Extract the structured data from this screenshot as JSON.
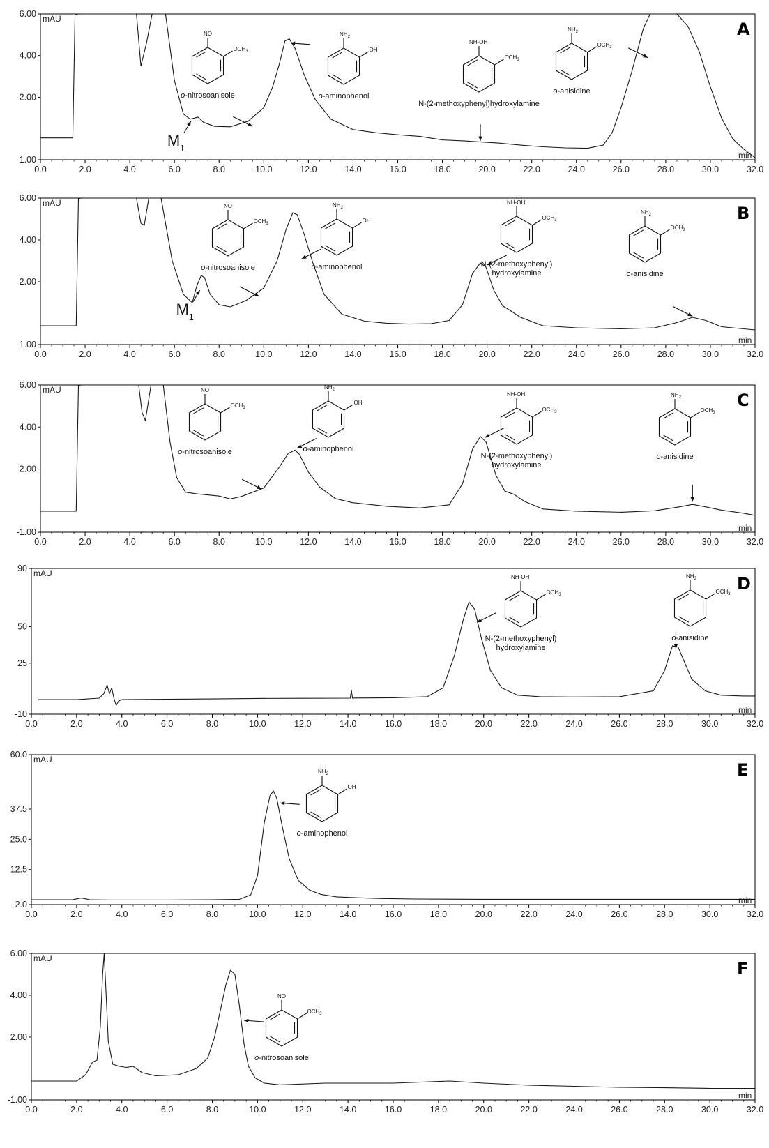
{
  "chart_data": [
    {
      "type": "line",
      "panel_label": "A",
      "y_unit": "mAU",
      "x_unit": "min",
      "xlim": [
        0,
        32
      ],
      "ylim": [
        -1,
        6
      ],
      "x_ticks": [
        "0.0",
        "2.0",
        "4.0",
        "6.0",
        "8.0",
        "10.0",
        "12.0",
        "14.0",
        "16.0",
        "18.0",
        "20.0",
        "22.0",
        "24.0",
        "26.0",
        "28.0",
        "30.0",
        "32.0"
      ],
      "y_ticks": [
        "6.00",
        "4.00",
        "2.00",
        "-1.00"
      ],
      "series": [
        {
          "x": [
            0,
            1.45,
            1.55,
            1.75,
            3.9,
            4.1,
            4.3,
            4.5,
            4.75,
            5.0,
            5.2,
            5.6,
            6.0,
            6.4,
            6.7,
            6.9,
            7.05,
            7.3,
            7.8,
            8.5,
            9.3,
            10.0,
            10.4,
            10.7,
            10.95,
            11.15,
            11.4,
            11.8,
            12.3,
            13.0,
            14.0,
            15.0,
            16.0,
            17.0,
            18.0,
            19.0,
            19.7,
            20.5,
            21.5,
            22.5,
            23.5,
            24.5,
            25.2,
            25.6,
            26.0,
            26.5,
            27.0,
            27.3,
            27.6,
            28.0,
            28.5,
            29.0,
            29.5,
            30.0,
            30.5,
            31.0,
            31.5,
            32.0
          ],
          "y": [
            0.05,
            0.05,
            5.98,
            6.0,
            6.0,
            6.0,
            6.0,
            3.5,
            4.6,
            6.0,
            6.0,
            6.0,
            2.8,
            1.2,
            0.95,
            1.0,
            1.05,
            0.8,
            0.6,
            0.58,
            0.85,
            1.5,
            2.5,
            3.6,
            4.7,
            4.8,
            4.35,
            3.1,
            1.9,
            0.95,
            0.45,
            0.3,
            0.2,
            0.12,
            -0.05,
            -0.1,
            -0.15,
            -0.2,
            -0.3,
            -0.38,
            -0.43,
            -0.45,
            -0.3,
            0.3,
            1.5,
            3.3,
            5.3,
            6.0,
            6.0,
            6.0,
            6.0,
            5.4,
            4.2,
            2.5,
            1.0,
            0.0,
            -0.5,
            -0.9
          ]
        }
      ],
      "annotations": [
        {
          "text": "o-nitrosoanisole",
          "structure": "NO / OCH3",
          "arrow_x": 9.5,
          "arrow_y": 0.6
        },
        {
          "text": "o-aminophenol",
          "structure": "NH2 / OH",
          "arrow_x": 11.2,
          "arrow_y": 4.6
        },
        {
          "text": "N-(2-methoxyphenyl)hydroxylamine",
          "structure": "NH-OH / OCH3",
          "arrow_x": 19.7,
          "arrow_y": -0.1
        },
        {
          "text": "o-anisidine",
          "structure": "NH2 / OCH3",
          "arrow_x": 27.2,
          "arrow_y": 3.9
        }
      ],
      "marker": {
        "text": "M",
        "subscript": "1",
        "arrow_x": 6.8,
        "arrow_y": 0.95
      }
    },
    {
      "type": "line",
      "panel_label": "B",
      "y_unit": "mAU",
      "x_unit": "min",
      "xlim": [
        0,
        32
      ],
      "ylim": [
        -1,
        6
      ],
      "x_ticks": [
        "0.0",
        "2.0",
        "4.0",
        "6.0",
        "8.0",
        "10.0",
        "12.0",
        "14.0",
        "16.0",
        "18.0",
        "20.0",
        "22.0",
        "24.0",
        "26.0",
        "28.0",
        "30.0",
        "32.0"
      ],
      "y_ticks": [
        "6.00",
        "4.00",
        "2.00",
        "-1.00"
      ],
      "series": [
        {
          "x": [
            0,
            1.6,
            1.7,
            1.85,
            4.3,
            4.5,
            4.65,
            4.85,
            5.05,
            5.4,
            5.9,
            6.4,
            6.8,
            7.0,
            7.2,
            7.35,
            7.6,
            8.0,
            8.5,
            9.2,
            10.0,
            10.6,
            11.0,
            11.3,
            11.5,
            11.8,
            12.2,
            12.7,
            13.5,
            14.5,
            15.5,
            16.5,
            17.5,
            18.3,
            18.9,
            19.35,
            19.7,
            19.95,
            20.3,
            20.7,
            21.0,
            21.5,
            22.5,
            24.0,
            26.0,
            27.5,
            28.5,
            29.2,
            29.8,
            30.5,
            31.5,
            32.0
          ],
          "y": [
            -0.1,
            -0.1,
            5.98,
            6.0,
            6.0,
            4.8,
            4.7,
            6.0,
            6.0,
            6.0,
            3.0,
            1.4,
            1.0,
            1.8,
            2.3,
            2.2,
            1.4,
            0.9,
            0.8,
            1.1,
            1.7,
            3.0,
            4.5,
            5.3,
            5.2,
            4.3,
            2.9,
            1.4,
            0.45,
            0.12,
            0.02,
            -0.02,
            0.0,
            0.15,
            0.9,
            2.4,
            2.9,
            2.7,
            1.6,
            0.85,
            0.65,
            0.3,
            -0.1,
            -0.2,
            -0.25,
            -0.2,
            0.05,
            0.3,
            0.15,
            -0.15,
            -0.25,
            -0.3
          ]
        }
      ],
      "annotations": [
        {
          "text": "o-nitrosoanisole",
          "structure": "NO / OCH3",
          "arrow_x": 9.8,
          "arrow_y": 1.3
        },
        {
          "text": "o-aminophenol",
          "structure": "NH2 / OH",
          "arrow_x": 11.7,
          "arrow_y": 3.1
        },
        {
          "text": "N-(2-methoxyphenyl)",
          "text2": "hydroxylamine",
          "structure": "NH-OH / OCH3",
          "arrow_x": 20.0,
          "arrow_y": 2.8
        },
        {
          "text": "o-anisidine",
          "structure": "NH2 / OCH3",
          "arrow_x": 29.2,
          "arrow_y": 0.35
        }
      ],
      "marker": {
        "text": "M",
        "subscript": "1",
        "arrow_x": 7.2,
        "arrow_y": 1.7
      }
    },
    {
      "type": "line",
      "panel_label": "C",
      "y_unit": "mAU",
      "x_unit": "min",
      "xlim": [
        0,
        32
      ],
      "ylim": [
        -1,
        6
      ],
      "x_ticks": [
        "0.0",
        "2.0",
        "4.0",
        "6.0",
        "8.0",
        "10.0",
        "12.0",
        "14.0",
        "16.0",
        "18.0",
        "20.0",
        "22.0",
        "24.0",
        "26.0",
        "28.0",
        "30.0",
        "32.0"
      ],
      "y_ticks": [
        "6.00",
        "4.00",
        "2.00",
        "-1.00"
      ],
      "series": [
        {
          "x": [
            0,
            1.6,
            1.7,
            1.85,
            4.4,
            4.55,
            4.7,
            4.95,
            5.2,
            5.5,
            5.8,
            6.1,
            6.5,
            7.0,
            8.0,
            8.5,
            9.0,
            10.0,
            10.7,
            11.1,
            11.4,
            11.6,
            12.0,
            12.5,
            13.2,
            14.0,
            15.5,
            17.0,
            18.3,
            18.9,
            19.35,
            19.7,
            19.95,
            20.4,
            20.8,
            21.2,
            21.7,
            22.5,
            24.0,
            26.0,
            27.5,
            28.6,
            29.2,
            29.8,
            30.5,
            31.5,
            32.0
          ],
          "y": [
            0.0,
            0.0,
            5.98,
            6.0,
            6.0,
            4.7,
            4.3,
            6.0,
            6.0,
            6.0,
            3.3,
            1.6,
            0.9,
            0.82,
            0.72,
            0.58,
            0.7,
            1.1,
            2.1,
            2.75,
            2.9,
            2.7,
            1.85,
            1.15,
            0.6,
            0.4,
            0.23,
            0.15,
            0.3,
            1.3,
            2.95,
            3.55,
            3.3,
            1.7,
            0.95,
            0.8,
            0.45,
            0.1,
            0.0,
            -0.05,
            0.02,
            0.2,
            0.32,
            0.2,
            0.05,
            -0.1,
            -0.2
          ]
        }
      ],
      "annotations": [
        {
          "text": "o-nitrosoanisole",
          "structure": "NO / OCH3",
          "arrow_x": 9.9,
          "arrow_y": 1.05
        },
        {
          "text": "o-aminophenol",
          "structure": "NH2 / OH",
          "arrow_x": 11.5,
          "arrow_y": 3.0
        },
        {
          "text": "N-(2-methoxyphenyl)",
          "text2": "hydroxylamine",
          "structure": "NH-OH / OCH3",
          "arrow_x": 19.9,
          "arrow_y": 3.5
        },
        {
          "text": "o-anisidine",
          "structure": "NH2 / OCH3",
          "arrow_x": 29.2,
          "arrow_y": 0.45
        }
      ]
    },
    {
      "type": "line",
      "panel_label": "D",
      "y_unit": "mAU",
      "x_unit": "min",
      "xlim": [
        0,
        32
      ],
      "ylim": [
        -10,
        90
      ],
      "x_ticks": [
        "0.0",
        "2.0",
        "4.0",
        "6.0",
        "8.0",
        "10.0",
        "12.0",
        "14.0",
        "16.0",
        "18.0",
        "20.0",
        "22.0",
        "24.0",
        "26.0",
        "28.0",
        "30.0",
        "32.0"
      ],
      "y_ticks": [
        "90",
        "50",
        "25",
        "-10"
      ],
      "series": [
        {
          "x": [
            0.3,
            2.0,
            3.0,
            3.2,
            3.35,
            3.45,
            3.55,
            3.65,
            3.75,
            3.85,
            4.0,
            6.0,
            8.0,
            10.0,
            12.0,
            14.1,
            14.15,
            14.2,
            14.3,
            16.0,
            17.5,
            18.2,
            18.7,
            19.1,
            19.35,
            19.6,
            19.9,
            20.3,
            20.8,
            21.5,
            22.5,
            24.0,
            26.0,
            27.5,
            28.0,
            28.35,
            28.6,
            28.9,
            29.2,
            29.8,
            30.5,
            31.5,
            32.0
          ],
          "y": [
            0.0,
            0.0,
            1.0,
            4.0,
            10.0,
            4.0,
            8.0,
            1.0,
            -4.0,
            -1.0,
            0.0,
            0.3,
            0.5,
            0.8,
            0.9,
            1.0,
            6.5,
            1.0,
            1.1,
            1.3,
            2.0,
            8.0,
            30.0,
            55.0,
            67.0,
            62.0,
            42.0,
            20.0,
            8.0,
            3.0,
            2.0,
            1.8,
            2.0,
            6.0,
            20.0,
            37.0,
            36.0,
            25.0,
            14.0,
            6.0,
            3.0,
            2.5,
            2.5
          ]
        }
      ],
      "annotations": [
        {
          "text": "N-(2-methoxyphenyl)",
          "text2": "hydroxylamine",
          "structure": "NH-OH / OCH3",
          "arrow_x": 19.7,
          "arrow_y": 53
        },
        {
          "text": "o-anisidine",
          "structure": "NH2 / OCH3",
          "arrow_x": 28.5,
          "arrow_y": 35
        }
      ]
    },
    {
      "type": "line",
      "panel_label": "E",
      "y_unit": "mAU",
      "x_unit": "min",
      "xlim": [
        0,
        32
      ],
      "ylim": [
        -2,
        60
      ],
      "x_ticks": [
        "0.0",
        "2.0",
        "4.0",
        "6.0",
        "8.0",
        "10.0",
        "12.0",
        "14.0",
        "16.0",
        "18.0",
        "20.0",
        "22.0",
        "24.0",
        "26.0",
        "28.0",
        "30.0",
        "32.0"
      ],
      "y_ticks": [
        "60.0",
        "37.5",
        "25.0",
        "12.5",
        "-2.0"
      ],
      "series": [
        {
          "x": [
            0,
            1.8,
            2.2,
            2.6,
            3.5,
            4.0,
            6.0,
            8.0,
            9.2,
            9.7,
            10.0,
            10.3,
            10.55,
            10.7,
            10.85,
            11.1,
            11.4,
            11.8,
            12.3,
            12.8,
            13.5,
            14.5,
            15.5,
            17.0,
            20.0,
            24.0,
            28.0,
            32.0
          ],
          "y": [
            0.0,
            0.0,
            0.7,
            0.0,
            -0.1,
            -0.1,
            -0.1,
            0.0,
            0.2,
            2.0,
            10.0,
            32.0,
            43.0,
            45.0,
            42.0,
            30.0,
            17.0,
            8.0,
            4.0,
            2.2,
            1.2,
            0.8,
            0.5,
            0.3,
            0.2,
            0.2,
            0.2,
            0.2
          ]
        }
      ],
      "annotations": [
        {
          "text": "o-aminophenol",
          "structure": "NH2 / OH",
          "arrow_x": 11.0,
          "arrow_y": 40
        }
      ]
    },
    {
      "type": "line",
      "panel_label": "F",
      "y_unit": "mAU",
      "x_unit": "min",
      "xlim": [
        0,
        32
      ],
      "ylim": [
        -1,
        6
      ],
      "x_ticks": [
        "0.0",
        "2.0",
        "4.0",
        "6.0",
        "8.0",
        "10.0",
        "12.0",
        "14.0",
        "16.0",
        "18.0",
        "20.0",
        "22.0",
        "24.0",
        "26.0",
        "28.0",
        "30.0",
        "32.0"
      ],
      "y_ticks": [
        "6.00",
        "4.00",
        "2.00",
        "-1.00"
      ],
      "series": [
        {
          "x": [
            0,
            2.0,
            2.4,
            2.7,
            2.9,
            3.05,
            3.15,
            3.22,
            3.3,
            3.4,
            3.6,
            3.9,
            4.2,
            4.5,
            4.9,
            5.5,
            6.5,
            7.3,
            7.8,
            8.1,
            8.4,
            8.6,
            8.8,
            9.0,
            9.2,
            9.4,
            9.6,
            9.9,
            10.3,
            11.0,
            13.0,
            16.0,
            18.5,
            20.0,
            22.0,
            24.0,
            26.0,
            28.0,
            30.0,
            32.0
          ],
          "y": [
            -0.1,
            -0.1,
            0.2,
            0.8,
            0.9,
            2.5,
            5.0,
            6.0,
            4.2,
            1.8,
            0.7,
            0.6,
            0.55,
            0.6,
            0.3,
            0.15,
            0.2,
            0.5,
            1.0,
            2.0,
            3.5,
            4.5,
            5.2,
            5.0,
            3.5,
            1.7,
            0.6,
            0.05,
            -0.2,
            -0.28,
            -0.2,
            -0.2,
            -0.1,
            -0.2,
            -0.3,
            -0.35,
            -0.4,
            -0.42,
            -0.45,
            -0.45
          ]
        }
      ],
      "annotations": [
        {
          "text": "o-nitrosoanisole",
          "structure": "NO / OCH3",
          "arrow_x": 9.4,
          "arrow_y": 2.8
        }
      ]
    }
  ]
}
